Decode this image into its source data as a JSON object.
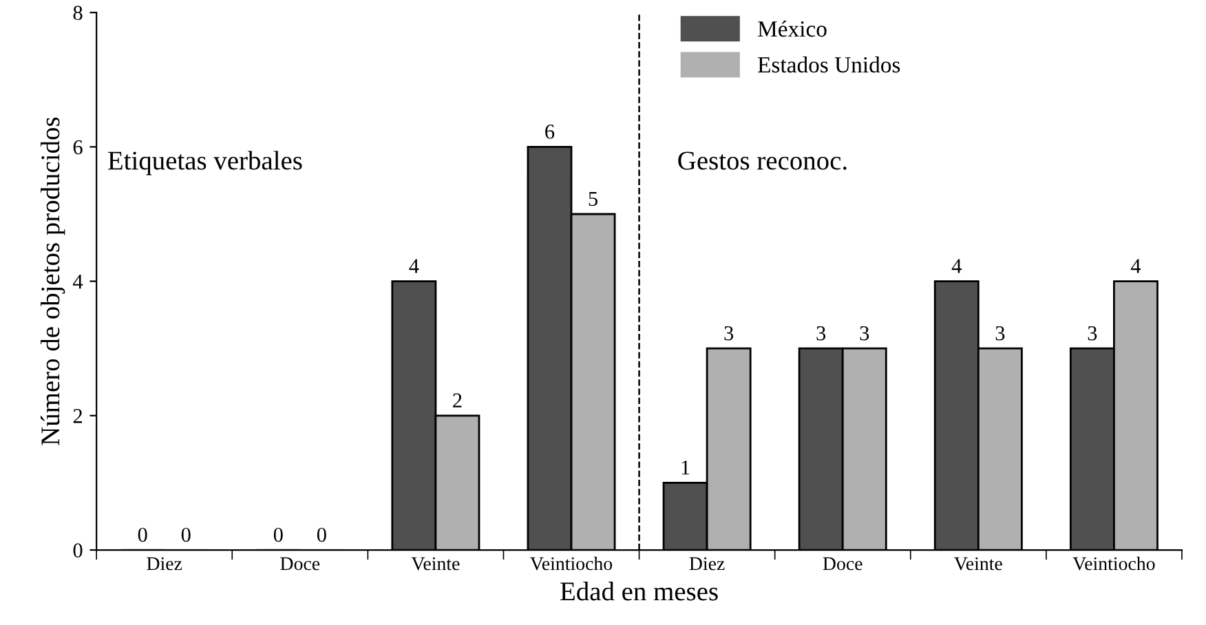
{
  "chart_data": {
    "type": "bar",
    "xlabel": "Edad en meses",
    "ylabel": "Número de objetos producidos",
    "categories": [
      "Diez",
      "Doce",
      "Veinte",
      "Veintiocho",
      "Diez",
      "Doce",
      "Veinte",
      "Veintiocho"
    ],
    "series": [
      {
        "name": "México",
        "color": "#505050",
        "values": [
          0,
          0,
          4,
          6,
          1,
          3,
          4,
          3
        ]
      },
      {
        "name": "Estados Unidos",
        "color": "#b0b0b0",
        "values": [
          0,
          0,
          2,
          5,
          3,
          3,
          3,
          4
        ]
      }
    ],
    "ylim": [
      0,
      8
    ],
    "yticks": [
      0,
      2,
      4,
      6,
      8
    ],
    "data_labels": true,
    "legend": "top",
    "grid": false,
    "annotations": [
      {
        "text": "Etiquetas verbales"
      },
      {
        "text": "Gestos reconoc."
      }
    ]
  }
}
